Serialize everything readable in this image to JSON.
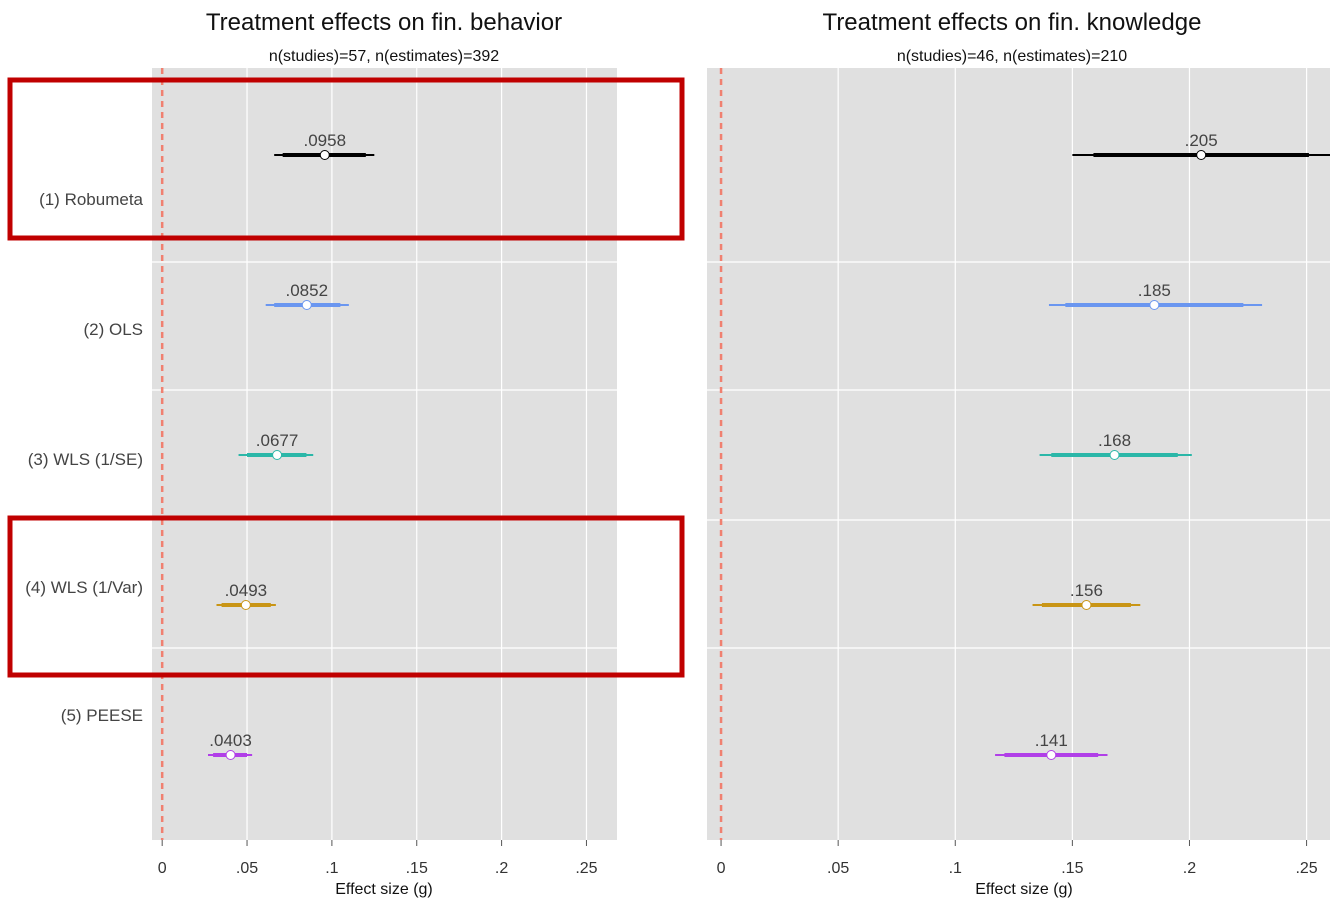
{
  "chart_data": [
    {
      "type": "forest",
      "title": "Treatment effects on fin. behavior",
      "subtitle": "n(studies)=57, n(estimates)=392",
      "xlabel": "Effect size (g)",
      "xlim": [
        -0.006,
        0.268
      ],
      "xticks": [
        0,
        0.05,
        0.1,
        0.15,
        0.2,
        0.25
      ],
      "xtick_labels": [
        "0",
        ".05",
        ".1",
        ".15",
        ".2",
        ".25"
      ],
      "reference_line": 0,
      "categories": [
        "(1) Robumeta",
        "(2) OLS",
        "(3) WLS (1/SE)",
        "(4) WLS (1/Var)",
        "(5) PEESE"
      ],
      "series": [
        {
          "estimate": 0.0958,
          "label": ".0958",
          "ci90": [
            0.071,
            0.12
          ],
          "ci95": [
            0.066,
            0.125
          ],
          "color": "#000000"
        },
        {
          "estimate": 0.0852,
          "label": ".0852",
          "ci90": [
            0.066,
            0.105
          ],
          "ci95": [
            0.061,
            0.11
          ],
          "color": "#6a96f0"
        },
        {
          "estimate": 0.0677,
          "label": ".0677",
          "ci90": [
            0.05,
            0.085
          ],
          "ci95": [
            0.045,
            0.089
          ],
          "color": "#2bb7a8"
        },
        {
          "estimate": 0.0493,
          "label": ".0493",
          "ci90": [
            0.035,
            0.064
          ],
          "ci95": [
            0.032,
            0.067
          ],
          "color": "#c99515"
        },
        {
          "estimate": 0.0403,
          "label": ".0403",
          "ci90": [
            0.03,
            0.05
          ],
          "ci95": [
            0.027,
            0.053
          ],
          "color": "#b13fe8"
        }
      ],
      "highlighted_rows": [
        "(1) Robumeta",
        "(4) WLS (1/Var)"
      ],
      "grid": true
    },
    {
      "type": "forest",
      "title": "Treatment effects on fin. knowledge",
      "subtitle": "n(studies)=46, n(estimates)=210",
      "xlabel": "Effect size (g)",
      "xlim": [
        -0.006,
        0.26
      ],
      "xticks": [
        0,
        0.05,
        0.1,
        0.15,
        0.2,
        0.25
      ],
      "xtick_labels": [
        "0",
        ".05",
        ".1",
        ".15",
        ".2",
        ".25"
      ],
      "reference_line": 0,
      "categories": [
        "(1) Robumeta",
        "(2) OLS",
        "(3) WLS (1/SE)",
        "(4) WLS (1/Var)",
        "(5) PEESE"
      ],
      "series": [
        {
          "estimate": 0.205,
          "label": ".205",
          "ci90": [
            0.159,
            0.251
          ],
          "ci95": [
            0.15,
            0.26
          ],
          "color": "#000000"
        },
        {
          "estimate": 0.185,
          "label": ".185",
          "ci90": [
            0.147,
            0.223
          ],
          "ci95": [
            0.14,
            0.231
          ],
          "color": "#6a96f0"
        },
        {
          "estimate": 0.168,
          "label": ".168",
          "ci90": [
            0.141,
            0.195
          ],
          "ci95": [
            0.136,
            0.201
          ],
          "color": "#2bb7a8"
        },
        {
          "estimate": 0.156,
          "label": ".156",
          "ci90": [
            0.137,
            0.175
          ],
          "ci95": [
            0.133,
            0.179
          ],
          "color": "#c99515"
        },
        {
          "estimate": 0.141,
          "label": ".141",
          "ci90": [
            0.121,
            0.161
          ],
          "ci95": [
            0.117,
            0.165
          ],
          "color": "#b13fe8"
        }
      ],
      "grid": true
    }
  ],
  "colors": {
    "panel_background": "#e0e0e0",
    "grid": "#ffffff",
    "reference_line": "#f08070",
    "highlight_box": "#c00000"
  }
}
